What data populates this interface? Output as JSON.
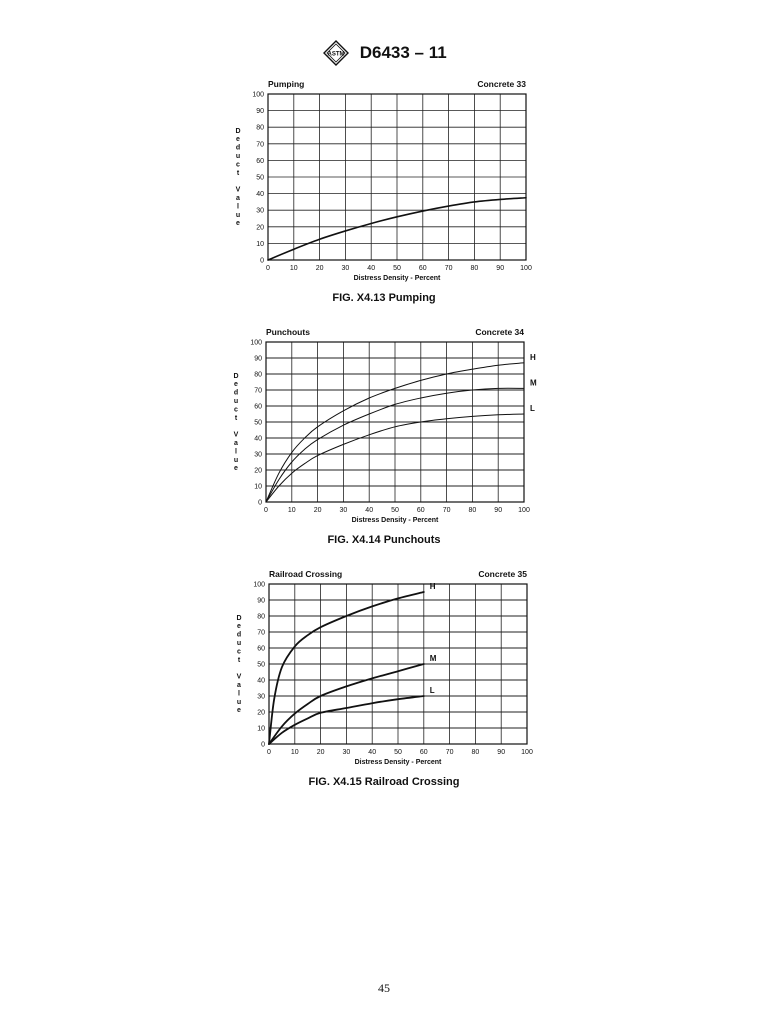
{
  "header": {
    "logo_text": "ASTM",
    "doc_title": "D6433 – 11"
  },
  "page_number": "45",
  "chart_data": [
    {
      "type": "line",
      "title": "Pumping",
      "subtitle": "Concrete 33",
      "xlabel": "Distress Density - Percent",
      "ylabel": "Deduct Value",
      "caption": "FIG. X4.13 Pumping",
      "xlim": [
        0,
        100
      ],
      "ylim": [
        0,
        100
      ],
      "xticks": [
        0,
        10,
        20,
        30,
        40,
        50,
        60,
        70,
        80,
        90,
        100
      ],
      "yticks": [
        0,
        10,
        20,
        30,
        40,
        50,
        60,
        70,
        80,
        90,
        100
      ],
      "grid": true,
      "series": [
        {
          "name": "",
          "x": [
            0,
            10,
            20,
            30,
            40,
            50,
            60,
            70,
            80,
            90,
            100
          ],
          "y": [
            0,
            6.5,
            12.5,
            17.5,
            22,
            26,
            29.5,
            32.5,
            35,
            36.5,
            37.5
          ]
        }
      ]
    },
    {
      "type": "line",
      "title": "Punchouts",
      "subtitle": "Concrete 34",
      "xlabel": "Distress Density - Percent",
      "ylabel": "Deduct Value",
      "caption": "FIG. X4.14 Punchouts",
      "xlim": [
        0,
        100
      ],
      "ylim": [
        0,
        100
      ],
      "xticks": [
        0,
        10,
        20,
        30,
        40,
        50,
        60,
        70,
        80,
        90,
        100
      ],
      "yticks": [
        0,
        10,
        20,
        30,
        40,
        50,
        60,
        70,
        80,
        90,
        100
      ],
      "grid": true,
      "series": [
        {
          "name": "H",
          "x": [
            0,
            5,
            10,
            15,
            20,
            30,
            40,
            50,
            60,
            70,
            80,
            90,
            100
          ],
          "y": [
            0,
            18,
            31,
            40,
            47,
            57,
            65,
            71,
            76,
            80,
            83,
            85.5,
            87
          ]
        },
        {
          "name": "M",
          "x": [
            0,
            5,
            10,
            15,
            20,
            30,
            40,
            50,
            60,
            70,
            80,
            90,
            100
          ],
          "y": [
            0,
            14,
            25,
            33,
            39,
            48,
            55,
            61,
            65,
            68,
            70,
            71,
            71
          ]
        },
        {
          "name": "L",
          "x": [
            0,
            5,
            10,
            15,
            20,
            30,
            40,
            50,
            60,
            70,
            80,
            90,
            100
          ],
          "y": [
            0,
            10,
            18,
            24,
            29,
            36,
            42,
            47,
            50,
            52,
            53.5,
            54.5,
            55
          ]
        }
      ]
    },
    {
      "type": "line",
      "title": "Railroad Crossing",
      "subtitle": "Concrete 35",
      "xlabel": "Distress Density - Percent",
      "ylabel": "Deduct Value",
      "caption": "FIG. X4.15 Railroad Crossing",
      "xlim": [
        0,
        100
      ],
      "ylim": [
        0,
        100
      ],
      "xticks": [
        0,
        10,
        20,
        30,
        40,
        50,
        60,
        70,
        80,
        90,
        100
      ],
      "yticks": [
        0,
        10,
        20,
        30,
        40,
        50,
        60,
        70,
        80,
        90,
        100
      ],
      "grid": true,
      "series": [
        {
          "name": "H",
          "x": [
            0,
            2,
            5,
            10,
            15,
            20,
            30,
            40,
            50,
            60
          ],
          "y": [
            0,
            28,
            48,
            61,
            68,
            73,
            80,
            86,
            91,
            95
          ]
        },
        {
          "name": "M",
          "x": [
            0,
            5,
            10,
            15,
            20,
            30,
            40,
            50,
            60
          ],
          "y": [
            0,
            11,
            19,
            25,
            30,
            36,
            41,
            45.5,
            50
          ]
        },
        {
          "name": "L",
          "x": [
            0,
            5,
            10,
            15,
            20,
            30,
            40,
            50,
            60
          ],
          "y": [
            0,
            7,
            12,
            16,
            19.5,
            22.5,
            25.5,
            28,
            30
          ]
        }
      ]
    }
  ]
}
